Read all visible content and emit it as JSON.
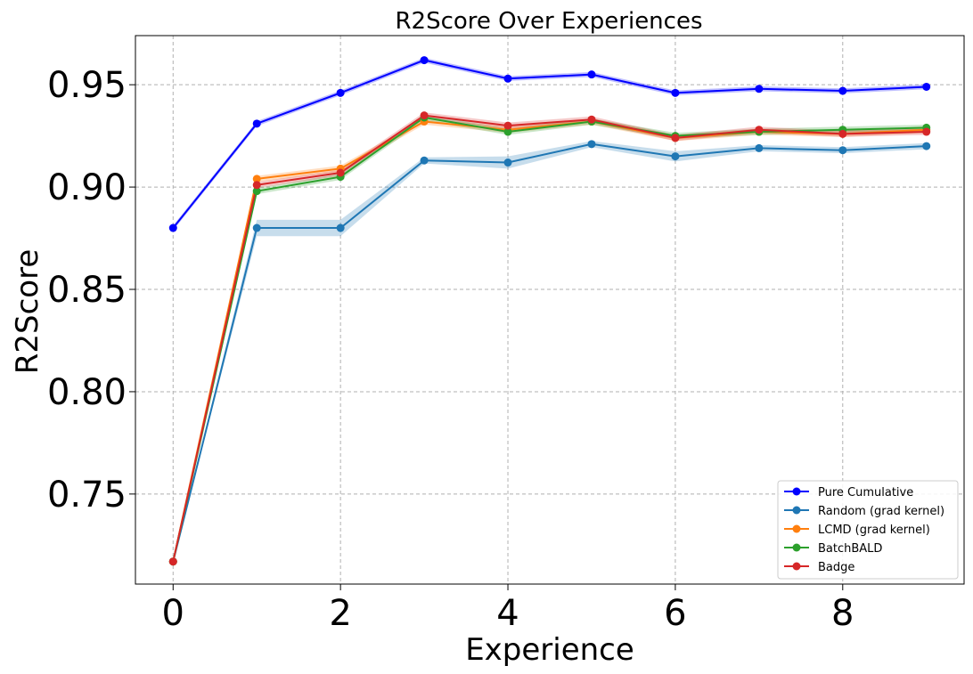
{
  "chart_data": {
    "type": "line",
    "title": "R2Score Over Experiences",
    "xlabel": "Experience",
    "ylabel": "R2Score",
    "xlim": [
      -0.45,
      9.45
    ],
    "ylim": [
      0.706,
      0.974
    ],
    "xticks": [
      0,
      2,
      4,
      6,
      8
    ],
    "yticks": [
      0.75,
      0.8,
      0.85,
      0.9,
      0.95
    ],
    "grid": true,
    "legend_position": "bottom-right",
    "x": [
      0,
      1,
      2,
      3,
      4,
      5,
      6,
      7,
      8,
      9
    ],
    "series": [
      {
        "name": "Pure Cumulative",
        "color": "#0000ff",
        "values": [
          0.88,
          0.931,
          0.946,
          0.962,
          0.953,
          0.955,
          0.946,
          0.948,
          0.947,
          0.949
        ],
        "band": 0.0012
      },
      {
        "name": "Random (grad kernel)",
        "color": "#1f77b4",
        "values": [
          0.717,
          0.88,
          0.88,
          0.913,
          0.912,
          0.921,
          0.915,
          0.919,
          0.918,
          0.92
        ],
        "band": [
          0.0,
          0.004,
          0.004,
          0.0015,
          0.003,
          0.0015,
          0.0025,
          0.0015,
          0.0015,
          0.0015
        ]
      },
      {
        "name": "LCMD (grad kernel)",
        "color": "#ff7f0e",
        "values": [
          0.717,
          0.904,
          0.909,
          0.932,
          0.928,
          0.932,
          0.924,
          0.927,
          0.926,
          0.928
        ],
        "band": 0.0015
      },
      {
        "name": "BatchBALD",
        "color": "#2ca02c",
        "values": [
          0.717,
          0.898,
          0.905,
          0.934,
          0.927,
          0.932,
          0.925,
          0.927,
          0.928,
          0.929
        ],
        "band": 0.0015
      },
      {
        "name": "Badge",
        "color": "#d62728",
        "values": [
          0.717,
          0.901,
          0.907,
          0.935,
          0.93,
          0.933,
          0.924,
          0.928,
          0.926,
          0.927
        ],
        "band": 0.0015
      }
    ]
  }
}
